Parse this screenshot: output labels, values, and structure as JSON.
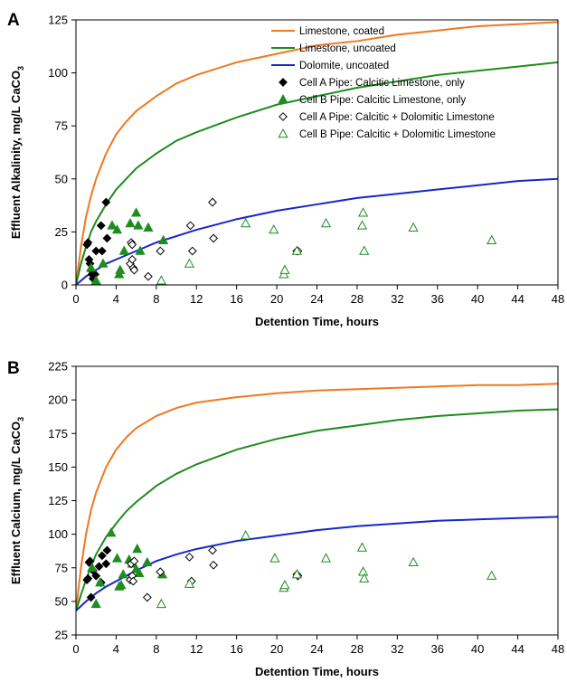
{
  "chart_data": [
    {
      "panel": "A",
      "type": "scatter",
      "xlabel": "Detention Time, hours",
      "ylabel": "Effluent Alkalinity, mg/L CaCO",
      "ylabel_sub": "3",
      "xlim": [
        0,
        48
      ],
      "ylim": [
        0,
        125
      ],
      "xticks": [
        0,
        4,
        8,
        12,
        16,
        20,
        24,
        28,
        32,
        36,
        40,
        44,
        48
      ],
      "yticks": [
        0,
        25,
        50,
        75,
        100,
        125
      ],
      "legend_position": "top-right",
      "series": [
        {
          "name": "Limestone, coated",
          "kind": "line",
          "color": "#f07820",
          "points": [
            [
              0,
              0
            ],
            [
              0.5,
              18
            ],
            [
              1,
              32
            ],
            [
              1.5,
              42
            ],
            [
              2,
              50
            ],
            [
              3,
              62
            ],
            [
              4,
              71
            ],
            [
              5,
              77
            ],
            [
              6,
              82
            ],
            [
              8,
              89
            ],
            [
              10,
              95
            ],
            [
              12,
              99
            ],
            [
              16,
              105
            ],
            [
              20,
              109
            ],
            [
              24,
              113
            ],
            [
              28,
              115
            ],
            [
              32,
              118
            ],
            [
              36,
              120
            ],
            [
              40,
              122
            ],
            [
              44,
              123
            ],
            [
              48,
              124
            ]
          ]
        },
        {
          "name": "Limestone, uncoated",
          "kind": "line",
          "color": "#1e8c1e",
          "points": [
            [
              0,
              0
            ],
            [
              0.5,
              10
            ],
            [
              1,
              18
            ],
            [
              1.5,
              25
            ],
            [
              2,
              30
            ],
            [
              3,
              38
            ],
            [
              4,
              45
            ],
            [
              5,
              50
            ],
            [
              6,
              55
            ],
            [
              8,
              62
            ],
            [
              10,
              68
            ],
            [
              12,
              72
            ],
            [
              16,
              79
            ],
            [
              20,
              85
            ],
            [
              24,
              89
            ],
            [
              28,
              93
            ],
            [
              32,
              96
            ],
            [
              36,
              99
            ],
            [
              40,
              101
            ],
            [
              44,
              103
            ],
            [
              48,
              105
            ]
          ]
        },
        {
          "name": "Dolomite, uncoated",
          "kind": "line",
          "color": "#1428c8",
          "points": [
            [
              0,
              0
            ],
            [
              0.5,
              2
            ],
            [
              1,
              4
            ],
            [
              2,
              7
            ],
            [
              3,
              10
            ],
            [
              4,
              12
            ],
            [
              6,
              16
            ],
            [
              8,
              20
            ],
            [
              10,
              23
            ],
            [
              12,
              26
            ],
            [
              16,
              31
            ],
            [
              20,
              35
            ],
            [
              24,
              38
            ],
            [
              28,
              41
            ],
            [
              32,
              43
            ],
            [
              36,
              45
            ],
            [
              40,
              47
            ],
            [
              44,
              49
            ],
            [
              48,
              50
            ]
          ]
        },
        {
          "name": "Cell A Pipe: Calcitic Limestone, only",
          "kind": "marker",
          "marker": "diamond-filled",
          "color": "#000000",
          "points": [
            [
              1.1,
              19
            ],
            [
              1.2,
              20
            ],
            [
              1.3,
              12
            ],
            [
              1.4,
              10
            ],
            [
              1.5,
              7
            ],
            [
              1.6,
              5
            ],
            [
              1.7,
              3
            ],
            [
              1.9,
              5
            ],
            [
              2.0,
              16
            ],
            [
              2.5,
              28
            ],
            [
              2.6,
              16
            ],
            [
              3.0,
              39
            ],
            [
              3.1,
              22
            ]
          ]
        },
        {
          "name": "Cell B Pipe: Calcitic Limestone, only",
          "kind": "marker",
          "marker": "triangle-filled",
          "color": "#1e8c1e",
          "points": [
            [
              1.5,
              8
            ],
            [
              2.0,
              2
            ],
            [
              2.7,
              10
            ],
            [
              3.6,
              28
            ],
            [
              4.1,
              26
            ],
            [
              4.3,
              5
            ],
            [
              4.4,
              7
            ],
            [
              4.8,
              16
            ],
            [
              5.4,
              29
            ],
            [
              6.0,
              34
            ],
            [
              6.2,
              28
            ],
            [
              6.4,
              16
            ],
            [
              7.2,
              27
            ],
            [
              8.7,
              21
            ]
          ]
        },
        {
          "name": "Cell A Pipe: Calcitic + Dolomitic Limestone",
          "kind": "marker",
          "marker": "diamond-open",
          "color": "#000000",
          "points": [
            [
              5.4,
              10
            ],
            [
              5.5,
              20
            ],
            [
              5.6,
              19
            ],
            [
              5.6,
              12
            ],
            [
              5.7,
              8
            ],
            [
              5.8,
              7
            ],
            [
              7.2,
              4
            ],
            [
              8.4,
              16
            ],
            [
              11.4,
              28
            ],
            [
              11.6,
              16
            ],
            [
              13.6,
              39
            ],
            [
              13.7,
              22
            ],
            [
              22.0,
              16
            ],
            [
              22.1,
              16
            ]
          ]
        },
        {
          "name": "Cell B Pipe: Calcitic + Dolomitic Limestone",
          "kind": "marker",
          "marker": "triangle-open",
          "color": "#1e8c1e",
          "points": [
            [
              8.5,
              2
            ],
            [
              11.3,
              10
            ],
            [
              16.9,
              29
            ],
            [
              19.7,
              26
            ],
            [
              20.7,
              5
            ],
            [
              20.8,
              7
            ],
            [
              22.0,
              16
            ],
            [
              24.9,
              29
            ],
            [
              28.5,
              28
            ],
            [
              28.6,
              34
            ],
            [
              28.7,
              16
            ],
            [
              33.6,
              27
            ],
            [
              41.4,
              21
            ]
          ]
        }
      ]
    },
    {
      "panel": "B",
      "type": "scatter",
      "xlabel": "Detention Time, hours",
      "ylabel": "Effluent Calcium, mg/L CaCO",
      "ylabel_sub": "3",
      "xlim": [
        0,
        48
      ],
      "ylim": [
        25,
        225
      ],
      "xticks": [
        0,
        4,
        8,
        12,
        16,
        20,
        24,
        28,
        32,
        36,
        40,
        44,
        48
      ],
      "yticks": [
        25,
        50,
        75,
        100,
        125,
        150,
        175,
        200,
        225
      ],
      "series": [
        {
          "name": "Limestone, coated",
          "kind": "line",
          "color": "#f07820",
          "points": [
            [
              0,
              43
            ],
            [
              0.5,
              75
            ],
            [
              1,
              100
            ],
            [
              1.5,
              118
            ],
            [
              2,
              131
            ],
            [
              3,
              150
            ],
            [
              4,
              163
            ],
            [
              5,
              172
            ],
            [
              6,
              179
            ],
            [
              8,
              188
            ],
            [
              10,
              194
            ],
            [
              12,
              198
            ],
            [
              16,
              202
            ],
            [
              20,
              205
            ],
            [
              24,
              207
            ],
            [
              28,
              208
            ],
            [
              32,
              209
            ],
            [
              36,
              210
            ],
            [
              40,
              211
            ],
            [
              44,
              211
            ],
            [
              48,
              212
            ]
          ]
        },
        {
          "name": "Limestone, uncoated",
          "kind": "line",
          "color": "#1e8c1e",
          "points": [
            [
              0,
              43
            ],
            [
              0.5,
              55
            ],
            [
              1,
              66
            ],
            [
              1.5,
              76
            ],
            [
              2,
              85
            ],
            [
              3,
              98
            ],
            [
              4,
              108
            ],
            [
              5,
              117
            ],
            [
              6,
              124
            ],
            [
              8,
              136
            ],
            [
              10,
              145
            ],
            [
              12,
              152
            ],
            [
              16,
              163
            ],
            [
              20,
              171
            ],
            [
              24,
              177
            ],
            [
              28,
              181
            ],
            [
              32,
              185
            ],
            [
              36,
              188
            ],
            [
              40,
              190
            ],
            [
              44,
              192
            ],
            [
              48,
              193
            ]
          ]
        },
        {
          "name": "Dolomite, uncoated",
          "kind": "line",
          "color": "#1428c8",
          "points": [
            [
              0,
              43
            ],
            [
              1,
              50
            ],
            [
              2,
              56
            ],
            [
              3,
              61
            ],
            [
              4,
              65
            ],
            [
              6,
              73
            ],
            [
              8,
              80
            ],
            [
              10,
              85
            ],
            [
              12,
              89
            ],
            [
              16,
              95
            ],
            [
              20,
              99
            ],
            [
              24,
              103
            ],
            [
              28,
              106
            ],
            [
              32,
              108
            ],
            [
              36,
              110
            ],
            [
              40,
              111
            ],
            [
              44,
              112
            ],
            [
              48,
              113
            ]
          ]
        },
        {
          "name": "Cell A Pipe: Calcitic Limestone, only",
          "kind": "marker",
          "marker": "diamond-filled",
          "color": "#000000",
          "points": [
            [
              1.1,
              66
            ],
            [
              1.2,
              67
            ],
            [
              1.3,
              79
            ],
            [
              1.4,
              80
            ],
            [
              1.5,
              53
            ],
            [
              1.7,
              73
            ],
            [
              2.0,
              69
            ],
            [
              2.3,
              76
            ],
            [
              2.5,
              64
            ],
            [
              2.6,
              84
            ],
            [
              3.0,
              78
            ],
            [
              3.1,
              88
            ]
          ]
        },
        {
          "name": "Cell B Pipe: Calcitic Limestone, only",
          "kind": "marker",
          "marker": "triangle-filled",
          "color": "#1e8c1e",
          "points": [
            [
              1.6,
              75
            ],
            [
              2.0,
              48
            ],
            [
              2.4,
              64
            ],
            [
              3.5,
              101
            ],
            [
              4.1,
              82
            ],
            [
              4.3,
              61
            ],
            [
              4.5,
              62
            ],
            [
              4.7,
              70
            ],
            [
              5.3,
              81
            ],
            [
              5.6,
              78
            ],
            [
              6.0,
              74
            ],
            [
              6.1,
              89
            ],
            [
              6.3,
              71
            ],
            [
              7.1,
              79
            ],
            [
              8.6,
              70
            ]
          ]
        },
        {
          "name": "Cell A Pipe: Calcitic + Dolomitic Limestone",
          "kind": "marker",
          "marker": "diamond-open",
          "color": "#000000",
          "points": [
            [
              5.4,
              66
            ],
            [
              5.5,
              78
            ],
            [
              5.6,
              69
            ],
            [
              5.7,
              65
            ],
            [
              5.8,
              80
            ],
            [
              7.1,
              53
            ],
            [
              8.4,
              72
            ],
            [
              11.3,
              83
            ],
            [
              11.5,
              65
            ],
            [
              13.6,
              88
            ],
            [
              13.7,
              77
            ],
            [
              22.0,
              70
            ],
            [
              22.1,
              69
            ]
          ]
        },
        {
          "name": "Cell B Pipe: Calcitic + Dolomitic Limestone",
          "kind": "marker",
          "marker": "triangle-open",
          "color": "#1e8c1e",
          "points": [
            [
              8.5,
              48
            ],
            [
              11.3,
              63
            ],
            [
              16.9,
              99
            ],
            [
              19.8,
              82
            ],
            [
              20.7,
              60
            ],
            [
              20.8,
              62
            ],
            [
              22.0,
              70
            ],
            [
              24.9,
              82
            ],
            [
              28.5,
              90
            ],
            [
              28.6,
              72
            ],
            [
              28.7,
              67
            ],
            [
              33.6,
              79
            ],
            [
              41.4,
              69
            ]
          ]
        }
      ]
    }
  ]
}
